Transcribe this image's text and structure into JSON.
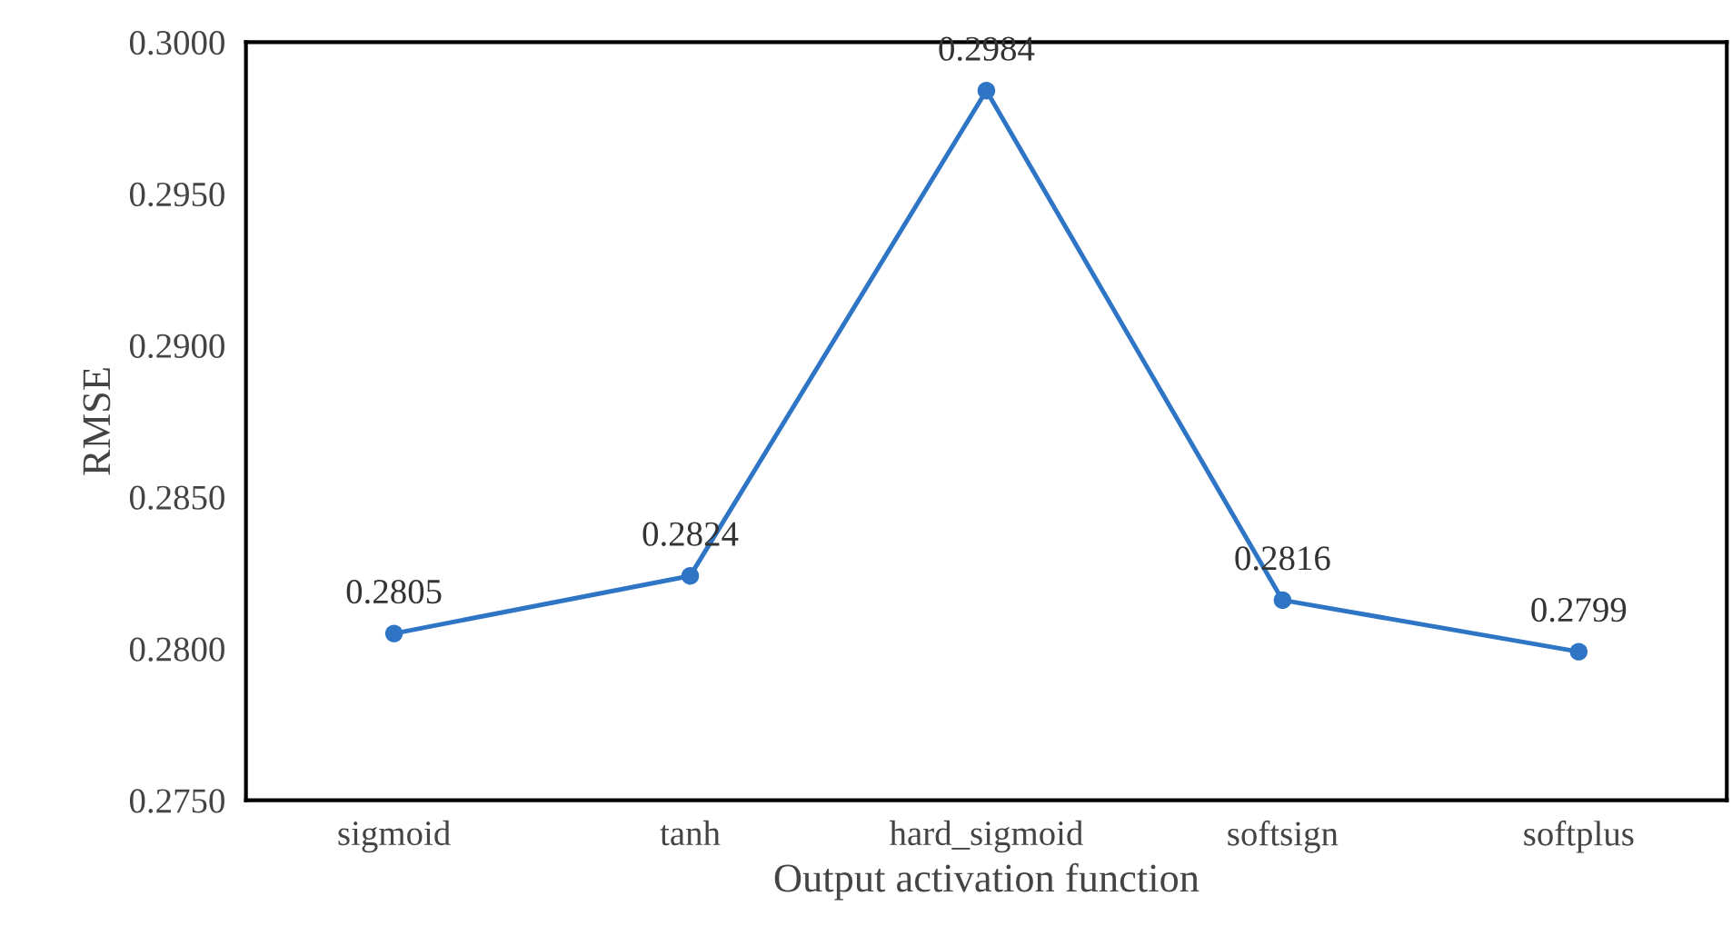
{
  "chart_data": {
    "type": "line",
    "xlabel": "Output activation function",
    "ylabel": "RMSE",
    "categories": [
      "sigmoid",
      "tanh",
      "hard_sigmoid",
      "softsign",
      "softplus"
    ],
    "series": [
      {
        "color": "#2e75c6",
        "values": [
          0.2805,
          0.2824,
          0.2984,
          0.2816,
          0.2799
        ]
      }
    ],
    "ylim": [
      0.275,
      0.3
    ],
    "yticks": [
      {
        "value": 0.275,
        "label": "0.2750"
      },
      {
        "value": 0.28,
        "label": "0.2800"
      },
      {
        "value": 0.285,
        "label": "0.2850"
      },
      {
        "value": 0.29,
        "label": "0.2900"
      },
      {
        "value": 0.295,
        "label": "0.2950"
      },
      {
        "value": 0.3,
        "label": "0.3000"
      }
    ],
    "data_labels": true,
    "marker": "circle",
    "line_style": "solid",
    "grid": false,
    "legend": false
  }
}
